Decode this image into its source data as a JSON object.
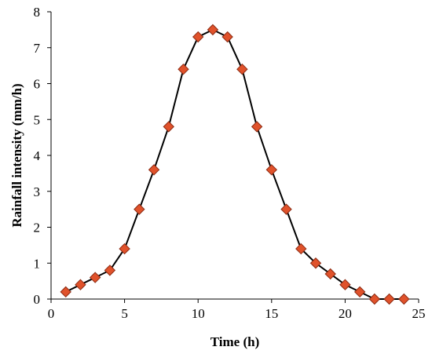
{
  "chart_data": {
    "type": "line",
    "title": "",
    "xlabel": "Time (h)",
    "ylabel": "Rainfall intensity (mm/h)",
    "xlim": [
      0,
      25
    ],
    "ylim": [
      0,
      8
    ],
    "xticks": [
      0,
      5,
      10,
      15,
      20,
      25
    ],
    "yticks": [
      0,
      1,
      2,
      3,
      4,
      5,
      6,
      7,
      8
    ],
    "grid": false,
    "legend": "none",
    "series": [
      {
        "x": [
          1,
          2,
          3,
          4,
          5,
          6,
          7,
          8,
          9,
          10,
          11,
          12,
          13,
          14,
          15,
          16,
          17,
          18,
          19,
          20,
          21,
          22,
          23,
          24
        ],
        "y": [
          0.2,
          0.4,
          0.6,
          0.8,
          1.4,
          2.5,
          3.6,
          4.8,
          6.4,
          7.3,
          7.5,
          7.3,
          6.4,
          4.8,
          3.6,
          2.5,
          1.4,
          1.0,
          0.7,
          0.4,
          0.2,
          0.0,
          0.0,
          0.0
        ],
        "marker": "diamond",
        "line_color": "#000000",
        "marker_color": "#e0522b",
        "marker_edge_color": "#8b2a12"
      }
    ]
  }
}
